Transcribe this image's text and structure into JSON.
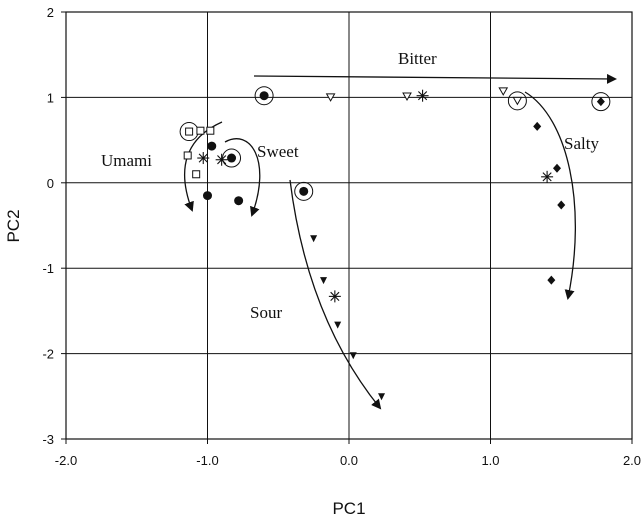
{
  "chart_data": {
    "type": "scatter",
    "title": "",
    "xlabel": "PC1",
    "ylabel": "PC2",
    "xlim": [
      -2.0,
      2.0
    ],
    "ylim": [
      -3,
      2
    ],
    "x_ticks": [
      -2.0,
      -1.0,
      0.0,
      1.0,
      2.0
    ],
    "x_tick_labels": [
      "-2.0",
      "-1.0",
      "0.0",
      "1.0",
      "2.0"
    ],
    "y_ticks": [
      -3,
      -2,
      -1,
      0,
      1,
      2
    ],
    "y_tick_labels": [
      "-3",
      "-2",
      "-1",
      "0",
      "1",
      "2"
    ],
    "grid": true,
    "groups": [
      {
        "name": "Bitter",
        "points": [
          {
            "x": -0.13,
            "y": 1.0,
            "marker": "triangle-open"
          },
          {
            "x": 0.41,
            "y": 1.01,
            "marker": "triangle-open"
          },
          {
            "x": 1.09,
            "y": 1.07,
            "marker": "triangle-open"
          },
          {
            "x": 1.19,
            "y": 0.96,
            "marker": "triangle-open",
            "circled": true
          }
        ],
        "centroid": {
          "x": 0.52,
          "y": 1.02
        }
      },
      {
        "name": "Umami",
        "points": [
          {
            "x": -1.13,
            "y": 0.6,
            "marker": "square-open",
            "circled": true
          },
          {
            "x": -1.05,
            "y": 0.61,
            "marker": "square-open"
          },
          {
            "x": -0.98,
            "y": 0.61,
            "marker": "square-open"
          },
          {
            "x": -1.14,
            "y": 0.32,
            "marker": "square-open"
          },
          {
            "x": -1.08,
            "y": 0.1,
            "marker": "square-open"
          }
        ],
        "centroid": {
          "x": -1.03,
          "y": 0.29
        }
      },
      {
        "name": "Sweet",
        "points": [
          {
            "x": -0.97,
            "y": 0.43,
            "marker": "circle-filled"
          },
          {
            "x": -0.83,
            "y": 0.29,
            "marker": "circle-filled",
            "circled": true
          },
          {
            "x": -1.0,
            "y": -0.15,
            "marker": "circle-filled"
          },
          {
            "x": -0.78,
            "y": -0.21,
            "marker": "circle-filled"
          },
          {
            "x": -0.6,
            "y": 1.02,
            "marker": "circle-filled",
            "circled": true
          },
          {
            "x": -0.32,
            "y": -0.1,
            "marker": "circle-filled",
            "circled": true
          }
        ],
        "centroid": {
          "x": -0.9,
          "y": 0.27
        }
      },
      {
        "name": "Sour",
        "points": [
          {
            "x": -0.25,
            "y": -0.65,
            "marker": "triangle-filled"
          },
          {
            "x": -0.18,
            "y": -1.14,
            "marker": "triangle-filled"
          },
          {
            "x": -0.08,
            "y": -1.66,
            "marker": "triangle-filled"
          },
          {
            "x": 0.03,
            "y": -2.02,
            "marker": "triangle-filled"
          },
          {
            "x": 0.23,
            "y": -2.5,
            "marker": "triangle-filled"
          }
        ],
        "centroid": {
          "x": -0.1,
          "y": -1.33
        }
      },
      {
        "name": "Salty",
        "points": [
          {
            "x": 1.78,
            "y": 0.95,
            "marker": "diamond-filled",
            "circled": true
          },
          {
            "x": 1.33,
            "y": 0.66,
            "marker": "diamond-filled"
          },
          {
            "x": 1.47,
            "y": 0.17,
            "marker": "diamond-filled"
          },
          {
            "x": 1.5,
            "y": -0.26,
            "marker": "diamond-filled"
          },
          {
            "x": 1.43,
            "y": -1.14,
            "marker": "diamond-filled"
          }
        ],
        "centroid": {
          "x": 1.4,
          "y": 0.07
        }
      }
    ]
  }
}
